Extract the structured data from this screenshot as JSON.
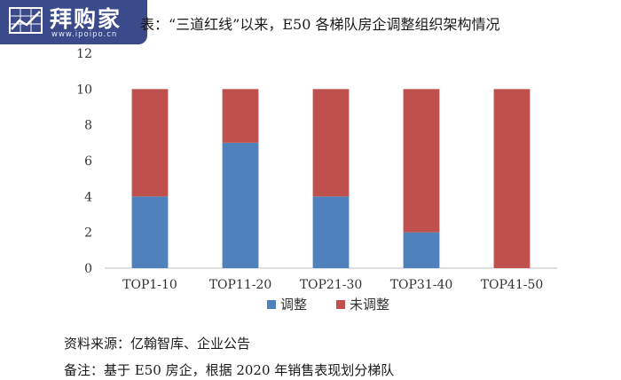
{
  "logo": {
    "name": "拜购家",
    "url": "www.ipoipo.cn"
  },
  "title": "表：“三道红线”以来，E50 各梯队房企调整组织架构情况",
  "chart_data": {
    "type": "bar",
    "stacked": true,
    "categories": [
      "TOP1-10",
      "TOP11-20",
      "TOP21-30",
      "TOP31-40",
      "TOP41-50"
    ],
    "series": [
      {
        "name": "调整",
        "values": [
          4,
          7,
          4,
          2,
          0
        ],
        "color": "#4f81bd"
      },
      {
        "name": "未调整",
        "values": [
          6,
          3,
          6,
          8,
          10
        ],
        "color": "#c0504d"
      }
    ],
    "ylim": [
      0,
      12
    ],
    "yticks": [
      0,
      2,
      4,
      6,
      8,
      10,
      12
    ],
    "grid": false,
    "legend": "bottom"
  },
  "notes": {
    "source": "资料来源：亿翰智库、企业公告",
    "remark": "备注：基于 E50 房企，根据 2020 年销售表现划分梯队"
  }
}
